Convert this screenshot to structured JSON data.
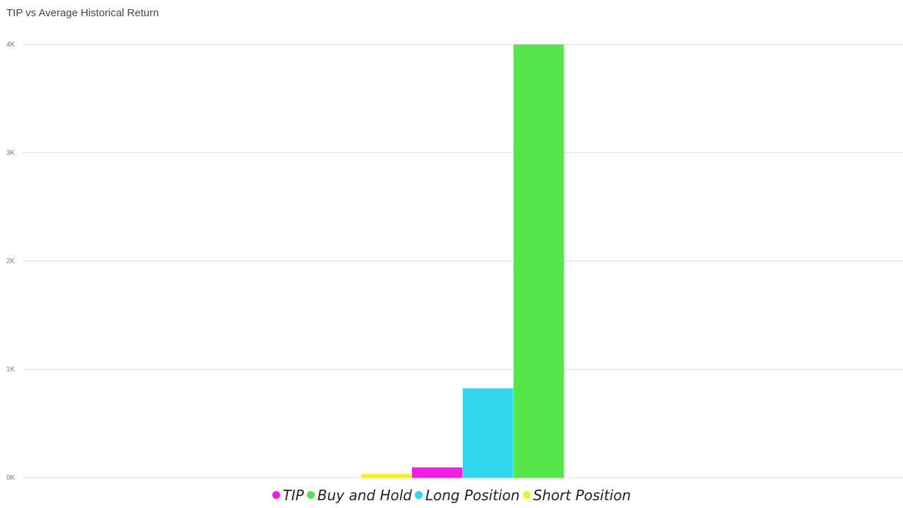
{
  "chart_data": {
    "type": "bar",
    "title": "TIP vs Average Historical Return",
    "xlabel": "",
    "ylabel": "",
    "ylim": [
      0,
      4000
    ],
    "y_ticks": [
      {
        "value": 0,
        "label": "0K"
      },
      {
        "value": 1000,
        "label": "1K"
      },
      {
        "value": 2000,
        "label": "2K"
      },
      {
        "value": 3000,
        "label": "3K"
      },
      {
        "value": 4000,
        "label": "4K"
      }
    ],
    "grid": true,
    "legend_position": "bottom",
    "series": [
      {
        "name": "Short Position",
        "value": 35,
        "color": "#F2F21E"
      },
      {
        "name": "TIP",
        "value": 95,
        "color": "#F01EE6"
      },
      {
        "name": "Long Position",
        "value": 825,
        "color": "#30D6EE"
      },
      {
        "name": "Buy and Hold",
        "value": 4000,
        "color": "#55E64B"
      }
    ],
    "legend": [
      {
        "name": "TIP",
        "color": "#F01EE6"
      },
      {
        "name": "Buy and Hold",
        "color": "#55E64B"
      },
      {
        "name": "Long Position",
        "color": "#30D6EE"
      },
      {
        "name": "Short Position",
        "color": "#F2F21E"
      }
    ]
  }
}
